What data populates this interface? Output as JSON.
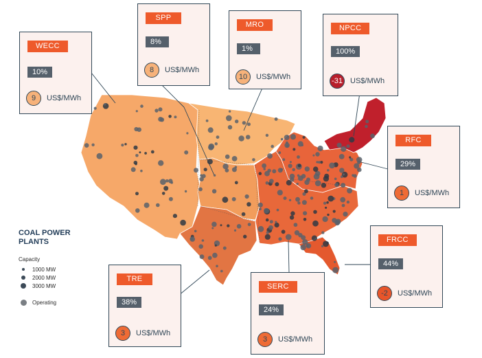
{
  "regions": [
    {
      "id": "wecc",
      "name": "WECC",
      "share": "10%",
      "price": "9",
      "unit": "US$/MWh",
      "circle_fill": "#f7b27a",
      "region_color": "#f6a869"
    },
    {
      "id": "spp",
      "name": "SPP",
      "share": "8%",
      "price": "8",
      "unit": "US$/MWh",
      "circle_fill": "#f7b27a",
      "region_color": "#f29d5c"
    },
    {
      "id": "mro",
      "name": "MRO",
      "share": "1%",
      "price": "10",
      "unit": "US$/MWh",
      "circle_fill": "#f7b27a",
      "region_color": "#f8b573"
    },
    {
      "id": "npcc",
      "name": "NPCC",
      "share": "100%",
      "price": "-31",
      "unit": "US$/MWh",
      "circle_fill": "#b81e2b",
      "region_color": "#c0202c"
    },
    {
      "id": "rfc",
      "name": "RFC",
      "share": "29%",
      "price": "1",
      "unit": "US$/MWh",
      "circle_fill": "#ef6b35",
      "region_color": "#e8643a"
    },
    {
      "id": "frcc",
      "name": "FRCC",
      "share": "44%",
      "price": "-2",
      "unit": "US$/MWh",
      "circle_fill": "#e8552a",
      "region_color": "#e4592e"
    },
    {
      "id": "tre",
      "name": "TRE",
      "share": "38%",
      "price": "3",
      "unit": "US$/MWh",
      "circle_fill": "#ef6b35",
      "region_color": "#e27543"
    },
    {
      "id": "serc",
      "name": "SERC",
      "share": "24%",
      "price": "3",
      "unit": "US$/MWh",
      "circle_fill": "#ef6b35",
      "region_color": "#e8683a"
    }
  ],
  "legend": {
    "title": "COAL POWER PLANTS",
    "capacity_label": "Capacity",
    "sizes": [
      "1000 MW",
      "2000 MW",
      "3000 MW"
    ],
    "operating_label": "Operating"
  },
  "colors": {
    "tag": "#ee5a2b",
    "pct_box": "#55606b",
    "card_bg": "#fcf1ee",
    "border": "#2f4656",
    "plant_dot": "#59626b"
  }
}
